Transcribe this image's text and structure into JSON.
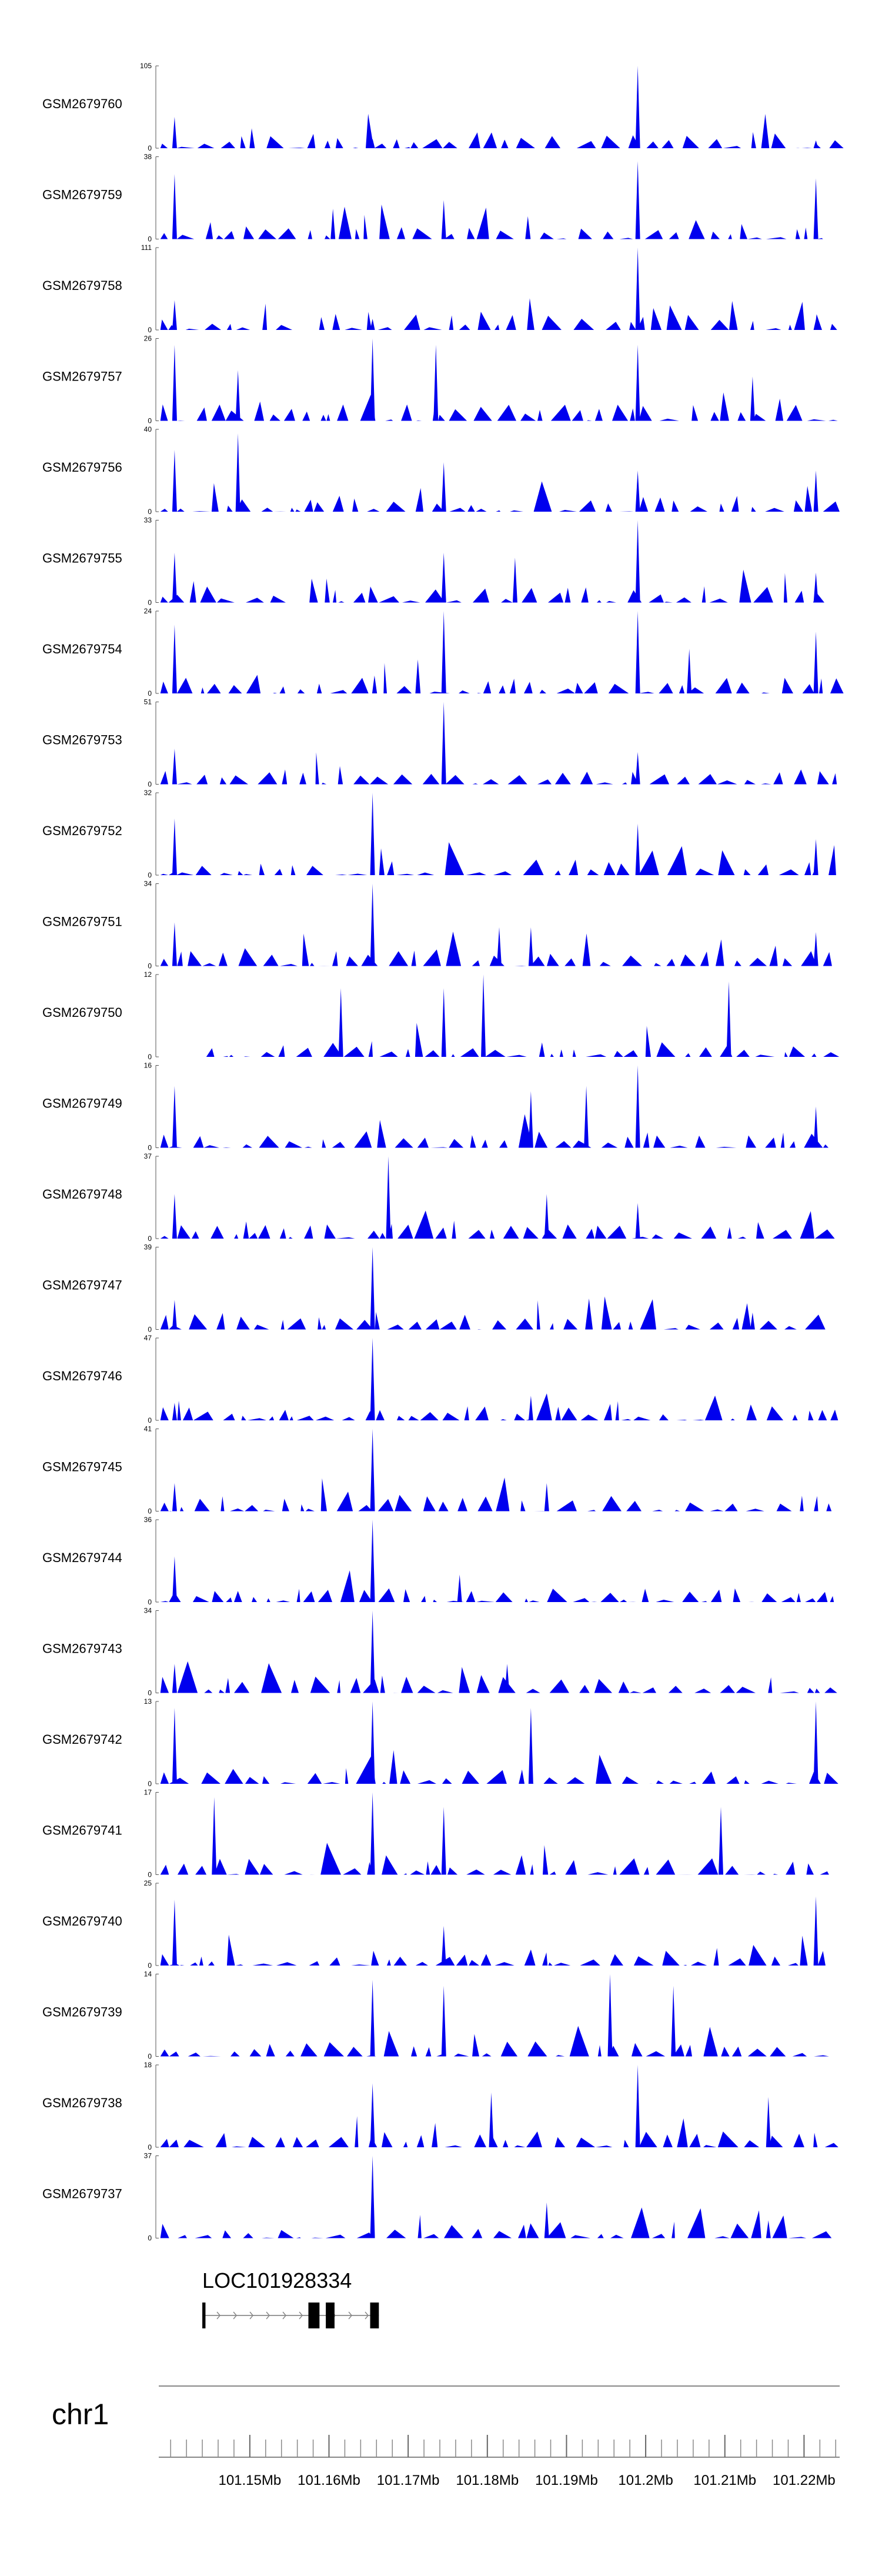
{
  "chart_data": {
    "type": "area",
    "title": "",
    "color": "#0000ee",
    "xlim": [
      101.1385,
      101.2245
    ],
    "unit_label": "Mb",
    "tracks": [
      {
        "name": "GSM2679760",
        "ymax": "105",
        "seed": 11,
        "peaks": [
          [
            101.1405,
            40
          ],
          [
            101.1655,
            12
          ],
          [
            101.199,
            105
          ],
          [
            101.2215,
            10
          ]
        ]
      },
      {
        "name": "GSM2679759",
        "ymax": "38",
        "seed": 23,
        "peaks": [
          [
            101.1405,
            30
          ],
          [
            101.1605,
            14
          ],
          [
            101.1745,
            18
          ],
          [
            101.199,
            36
          ],
          [
            101.2215,
            28
          ]
        ]
      },
      {
        "name": "GSM2679758",
        "ymax": "111",
        "seed": 37,
        "peaks": [
          [
            101.1405,
            40
          ],
          [
            101.1655,
            15
          ],
          [
            101.199,
            111
          ],
          [
            101.2215,
            14
          ]
        ]
      },
      {
        "name": "GSM2679757",
        "ymax": "26",
        "seed": 41,
        "peaks": [
          [
            101.1405,
            24
          ],
          [
            101.1485,
            16
          ],
          [
            101.1655,
            26
          ],
          [
            101.1735,
            24
          ],
          [
            101.199,
            24
          ],
          [
            101.2135,
            14
          ]
        ]
      },
      {
        "name": "GSM2679756",
        "ymax": "40",
        "seed": 53,
        "peaks": [
          [
            101.1405,
            30
          ],
          [
            101.1485,
            38
          ],
          [
            101.1745,
            24
          ],
          [
            101.199,
            20
          ],
          [
            101.2215,
            20
          ]
        ]
      },
      {
        "name": "GSM2679755",
        "ymax": "33",
        "seed": 67,
        "peaks": [
          [
            101.1405,
            20
          ],
          [
            101.1745,
            20
          ],
          [
            101.1835,
            18
          ],
          [
            101.199,
            33
          ],
          [
            101.2215,
            12
          ]
        ]
      },
      {
        "name": "GSM2679754",
        "ymax": "24",
        "seed": 71,
        "peaks": [
          [
            101.1405,
            20
          ],
          [
            101.1745,
            24
          ],
          [
            101.199,
            24
          ],
          [
            101.2055,
            13
          ],
          [
            101.2215,
            18
          ]
        ]
      },
      {
        "name": "GSM2679753",
        "ymax": "51",
        "seed": 83,
        "peaks": [
          [
            101.1405,
            22
          ],
          [
            101.1745,
            51
          ],
          [
            101.199,
            20
          ],
          [
            101.2195,
            8
          ]
        ]
      },
      {
        "name": "GSM2679752",
        "ymax": "32",
        "seed": 97,
        "peaks": [
          [
            101.1405,
            22
          ],
          [
            101.1655,
            32
          ],
          [
            101.199,
            20
          ],
          [
            101.2215,
            14
          ]
        ]
      },
      {
        "name": "GSM2679751",
        "ymax": "34",
        "seed": 101,
        "peaks": [
          [
            101.1405,
            18
          ],
          [
            101.1655,
            34
          ],
          [
            101.1815,
            16
          ],
          [
            101.1855,
            16
          ],
          [
            101.2215,
            14
          ]
        ]
      },
      {
        "name": "GSM2679750",
        "ymax": "12",
        "seed": 113,
        "peaks": [
          [
            101.1615,
            10
          ],
          [
            101.1745,
            10
          ],
          [
            101.1795,
            12
          ],
          [
            101.2105,
            11
          ]
        ]
      },
      {
        "name": "GSM2679749",
        "ymax": "16",
        "seed": 127,
        "peaks": [
          [
            101.1405,
            12
          ],
          [
            101.1855,
            11
          ],
          [
            101.1925,
            12
          ],
          [
            101.199,
            16
          ],
          [
            101.2215,
            8
          ]
        ]
      },
      {
        "name": "GSM2679748",
        "ymax": "37",
        "seed": 131,
        "peaks": [
          [
            101.1405,
            20
          ],
          [
            101.1675,
            37
          ],
          [
            101.1875,
            20
          ],
          [
            101.199,
            16
          ]
        ]
      },
      {
        "name": "GSM2679747",
        "ymax": "39",
        "seed": 139,
        "peaks": [
          [
            101.1405,
            14
          ],
          [
            101.1655,
            39
          ],
          [
            101.2135,
            8
          ]
        ]
      },
      {
        "name": "GSM2679746",
        "ymax": "47",
        "seed": 149,
        "peaks": [
          [
            101.1405,
            10
          ],
          [
            101.1655,
            47
          ],
          [
            101.1855,
            14
          ]
        ]
      },
      {
        "name": "GSM2679745",
        "ymax": "41",
        "seed": 157,
        "peaks": [
          [
            101.1405,
            14
          ],
          [
            101.1655,
            41
          ],
          [
            101.1875,
            14
          ]
        ]
      },
      {
        "name": "GSM2679744",
        "ymax": "36",
        "seed": 163,
        "peaks": [
          [
            101.1405,
            20
          ],
          [
            101.1655,
            36
          ],
          [
            101.1765,
            12
          ]
        ]
      },
      {
        "name": "GSM2679743",
        "ymax": "34",
        "seed": 173,
        "peaks": [
          [
            101.1405,
            12
          ],
          [
            101.1655,
            34
          ],
          [
            101.1825,
            12
          ]
        ]
      },
      {
        "name": "GSM2679742",
        "ymax": "13",
        "seed": 181,
        "peaks": [
          [
            101.1405,
            12
          ],
          [
            101.1655,
            13
          ],
          [
            101.1855,
            12
          ],
          [
            101.2215,
            13
          ]
        ]
      },
      {
        "name": "GSM2679741",
        "ymax": "17",
        "seed": 191,
        "peaks": [
          [
            101.1455,
            16
          ],
          [
            101.1655,
            17
          ],
          [
            101.1745,
            14
          ],
          [
            101.2095,
            14
          ]
        ]
      },
      {
        "name": "GSM2679740",
        "ymax": "25",
        "seed": 199,
        "peaks": [
          [
            101.1405,
            20
          ],
          [
            101.1745,
            12
          ],
          [
            101.2215,
            21
          ]
        ]
      },
      {
        "name": "GSM2679739",
        "ymax": "14",
        "seed": 211,
        "peaks": [
          [
            101.1655,
            13
          ],
          [
            101.1745,
            12
          ],
          [
            101.1955,
            14
          ],
          [
            101.2035,
            12
          ]
        ]
      },
      {
        "name": "GSM2679738",
        "ymax": "18",
        "seed": 223,
        "peaks": [
          [
            101.1655,
            14
          ],
          [
            101.1805,
            12
          ],
          [
            101.199,
            18
          ],
          [
            101.2155,
            11
          ]
        ]
      },
      {
        "name": "GSM2679737",
        "ymax": "37",
        "seed": 227,
        "peaks": [
          [
            101.1655,
            37
          ],
          [
            101.1875,
            16
          ],
          [
            101.2155,
            8
          ]
        ]
      }
    ],
    "gene": {
      "name": "LOC101928334",
      "start": 101.144,
      "end": 101.1663,
      "exons": [
        [
          101.144,
          101.1444
        ],
        [
          101.1574,
          101.1588
        ],
        [
          101.1596,
          101.1607
        ],
        [
          101.1652,
          101.1663
        ]
      ]
    },
    "chromosome": "chr1",
    "axis_ticks": [
      "101.15Mb",
      "101.16Mb",
      "101.17Mb",
      "101.18Mb",
      "101.19Mb",
      "101.2Mb",
      "101.21Mb",
      "101.22Mb"
    ],
    "axis_tick_values": [
      101.15,
      101.16,
      101.17,
      101.18,
      101.19,
      101.2,
      101.21,
      101.22
    ],
    "minor_tick_step": 0.002,
    "ymin_label": "0"
  }
}
